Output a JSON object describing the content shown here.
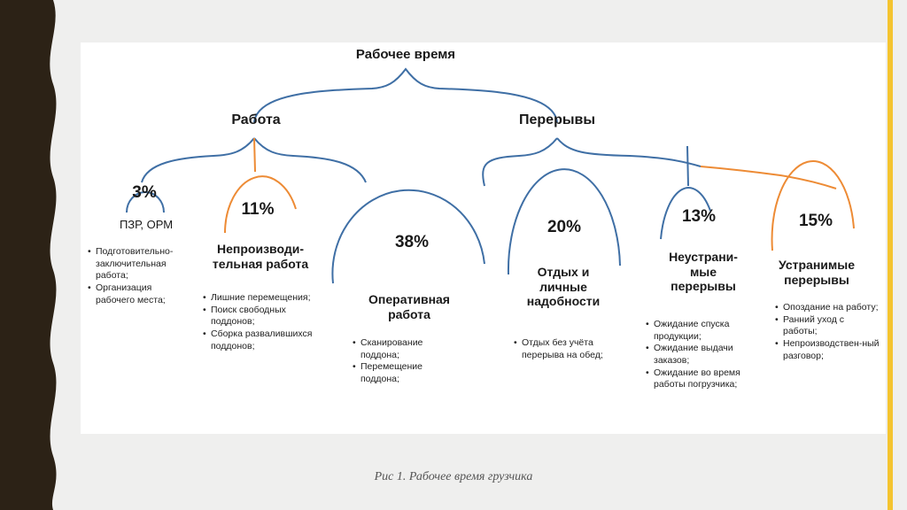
{
  "root": {
    "title": "Рабочее время"
  },
  "branches": [
    {
      "title": "Работа"
    },
    {
      "title": "Перерывы"
    }
  ],
  "categories": [
    {
      "percent": "3%",
      "label": [
        "ПЗР, ОРМ"
      ],
      "details": [
        "Подготовительно-заключительная работа;",
        "Организация рабочего места;"
      ],
      "color": "#3f6fa5"
    },
    {
      "percent": "11%",
      "label": [
        "Непроизводи-",
        "тельная работа"
      ],
      "details": [
        "Лишние перемещения;",
        "Поиск свободных поддонов;",
        "Сборка развалившихся поддонов;"
      ],
      "color": "#ed8b35"
    },
    {
      "percent": "38%",
      "label": [
        "Оперативная",
        "работа"
      ],
      "details": [
        "Сканирование поддона;",
        "Перемещение поддона;"
      ],
      "color": "#3f6fa5"
    },
    {
      "percent": "20%",
      "label": [
        "Отдых и",
        "личные",
        "надобности"
      ],
      "details": [
        "Отдых без учёта перерыва на обед;"
      ],
      "color": "#3f6fa5"
    },
    {
      "percent": "13%",
      "label": [
        "Неустрани-",
        "мые",
        "перерывы"
      ],
      "details": [
        "Ожидание спуска продукции;",
        "Ожидание выдачи заказов;",
        "Ожидание во время работы погрузчика;"
      ],
      "color": "#3f6fa5"
    },
    {
      "percent": "15%",
      "label": [
        "Устранимые",
        "перерывы"
      ],
      "details": [
        "Опоздание на работу;",
        "Ранний уход с работы;",
        "Непроизводствен-ный разговор;"
      ],
      "color": "#ed8b35"
    }
  ],
  "caption": "Рис 1. Рабочее время грузчика",
  "colors": {
    "blue": "#3f6fa5",
    "orange": "#ed8b35",
    "accent_bar": "#f4c430",
    "left_band": "#2c2216"
  }
}
